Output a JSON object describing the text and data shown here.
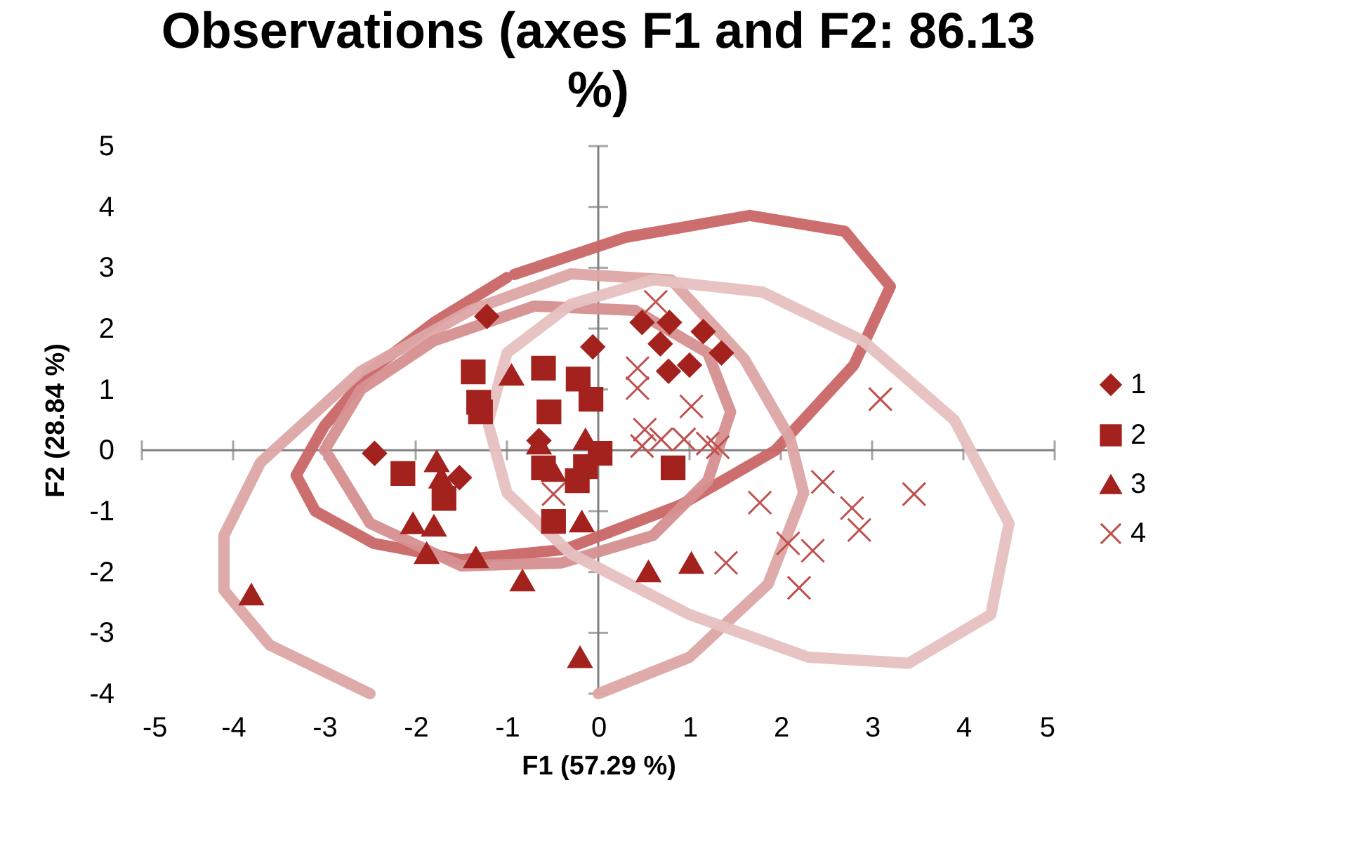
{
  "chart_data": {
    "type": "scatter",
    "title": "Observations (axes F1 and F2: 86.13 %)",
    "xlabel": "F1 (57.29 %)",
    "ylabel": "F2 (28.84 %)",
    "xlim": [
      -5,
      5
    ],
    "ylim": [
      -4,
      5
    ],
    "xticks": [
      -5,
      -4,
      -3,
      -2,
      -1,
      0,
      1,
      2,
      3,
      4,
      5
    ],
    "yticks": [
      -4,
      -3,
      -2,
      -1,
      0,
      1,
      2,
      3,
      4,
      5
    ],
    "legend": "right",
    "series": [
      {
        "type": "line",
        "color": "#c96666",
        "x": [
          -0.92,
          0.3,
          1.66,
          2.7,
          3.2,
          2.8,
          1.94,
          0.9,
          -0.37,
          -1.5,
          -2.46,
          -3.1,
          -3.31,
          -3.0,
          -2.46,
          -1.8,
          -1.0
        ],
        "values": [
          2.89,
          3.5,
          3.86,
          3.6,
          2.69,
          1.4,
          0,
          -0.9,
          -1.63,
          -1.8,
          -1.53,
          -1.0,
          -0.41,
          0.4,
          1.35,
          2.1,
          2.84
        ]
      },
      {
        "type": "line",
        "color": "#dda5a5",
        "x": [
          0.0,
          1.0,
          1.86,
          2.25,
          2.1,
          1.6,
          0.8,
          -0.3,
          -1.4,
          -2.6,
          -3.7,
          -4.1,
          -4.1,
          -3.6,
          -2.5
        ],
        "values": [
          -4.0,
          -3.4,
          -2.2,
          -0.7,
          0.2,
          1.5,
          2.8,
          2.9,
          2.3,
          1.3,
          -0.2,
          -1.4,
          -2.3,
          -3.2,
          -4.0
        ]
      },
      {
        "type": "line",
        "color": "#d68f8f",
        "x": [
          -3.0,
          -2.6,
          -1.8,
          -0.7,
          0.4,
          1.2,
          1.45,
          1.2,
          0.6,
          -0.4,
          -1.5,
          -2.5,
          -2.95
        ],
        "values": [
          0,
          1.0,
          1.8,
          2.37,
          2.3,
          1.6,
          0.63,
          -0.5,
          -1.4,
          -1.85,
          -1.9,
          -1.2,
          -0.1
        ]
      },
      {
        "type": "line",
        "color": "#e6c0c0",
        "x": [
          -1.2,
          -1.0,
          -0.3,
          0.6,
          1.8,
          2.9,
          3.9,
          4.5,
          4.3,
          3.4,
          2.3,
          1.0,
          -0.3,
          -1.0,
          -1.2
        ],
        "values": [
          0.5,
          1.6,
          2.4,
          2.8,
          2.6,
          1.8,
          0.5,
          -1.2,
          -2.7,
          -3.5,
          -3.4,
          -2.7,
          -1.7,
          -0.7,
          0.4
        ]
      },
      {
        "name": "1",
        "marker": "diamond",
        "color": "#a3221d",
        "x": [
          -1.22,
          -0.06,
          0.48,
          0.78,
          1.15,
          0.68,
          1.35,
          1.0,
          0.77,
          -2.45,
          -1.52,
          -0.65
        ],
        "values": [
          2.2,
          1.7,
          2.1,
          2.1,
          1.95,
          1.75,
          1.6,
          1.4,
          1.3,
          -0.05,
          -0.45,
          0.16
        ]
      },
      {
        "name": "2",
        "marker": "square",
        "color": "#a3221d",
        "x": [
          -1.37,
          -1.31,
          -1.29,
          -0.6,
          -0.22,
          -0.08,
          -0.54,
          -2.14,
          -1.69,
          -0.6,
          -0.14,
          0.02,
          -0.49,
          -0.23,
          0.82
        ],
        "values": [
          1.29,
          0.79,
          0.63,
          1.35,
          1.17,
          0.84,
          0.63,
          -0.38,
          -0.79,
          -0.29,
          -0.27,
          -0.05,
          -1.17,
          -0.5,
          -0.29
        ]
      },
      {
        "name": "3",
        "marker": "triangle",
        "color": "#a3221d",
        "x": [
          -0.95,
          -1.77,
          -2.03,
          -1.8,
          -1.88,
          -1.34,
          -0.83,
          -3.8,
          -0.65,
          -0.14,
          -0.49,
          -0.18,
          0.55,
          1.02,
          -0.2,
          -1.72
        ],
        "values": [
          1.24,
          -0.18,
          -1.2,
          -1.24,
          -1.69,
          -1.76,
          -2.14,
          -2.37,
          0.11,
          0.18,
          -0.34,
          -1.17,
          -1.99,
          -1.85,
          -3.4,
          -0.45
        ]
      },
      {
        "name": "4",
        "marker": "cross",
        "color": "#c0504d",
        "x": [
          0.63,
          0.43,
          0.43,
          1.02,
          0.51,
          0.69,
          0.94,
          1.2,
          1.31,
          0.48,
          3.09,
          2.46,
          1.77,
          2.78,
          3.46,
          2.86,
          2.08,
          2.35,
          1.4,
          2.2,
          -0.49
        ],
        "values": [
          2.44,
          1.35,
          1.02,
          0.72,
          0.34,
          0.18,
          0.18,
          0.11,
          0.05,
          0.07,
          0.84,
          -0.52,
          -0.86,
          -0.95,
          -0.72,
          -1.31,
          -1.53,
          -1.65,
          -1.85,
          -2.26,
          -0.72
        ]
      }
    ]
  }
}
